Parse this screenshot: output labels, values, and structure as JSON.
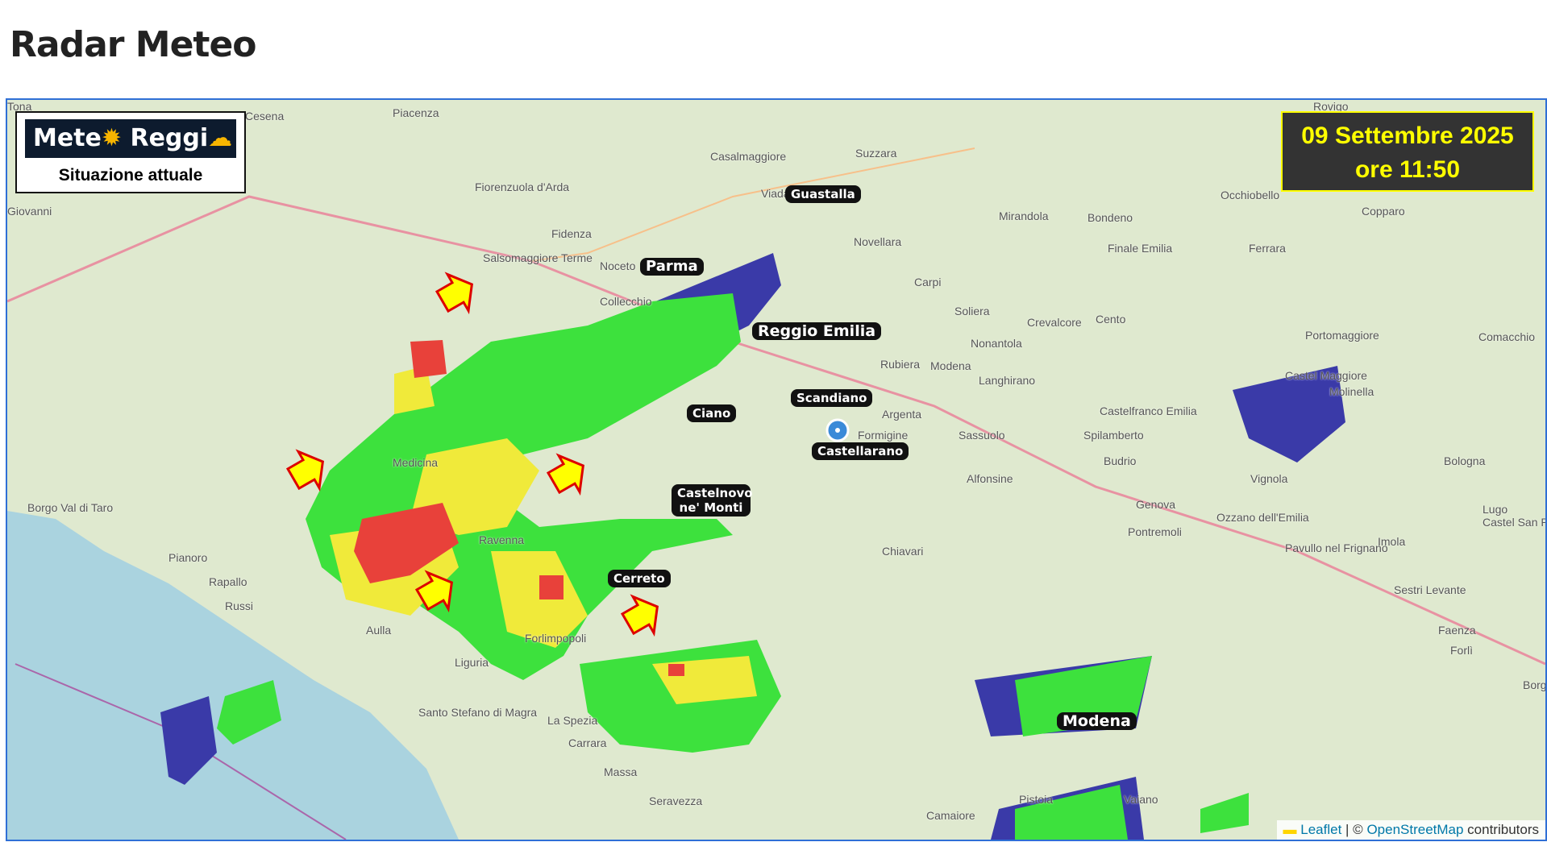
{
  "page": {
    "title": "Radar Meteo"
  },
  "logo": {
    "text1": "Mete",
    "text2": " Reggi",
    "subtitle": "Situazione attuale"
  },
  "timestamp": {
    "date": "09 Settembre 2025",
    "time": "ore 11:50"
  },
  "attribution": {
    "leaflet": "Leaflet",
    "sep": " | © ",
    "osm": "OpenStreetMap",
    "contributors": " contributors"
  },
  "colors": {
    "light": "#3de13d",
    "moderate": "#f0ea3a",
    "heavy": "#e8413a",
    "weak": "#3a3aa8",
    "arrow": "#ffff00"
  },
  "tags": [
    {
      "label": "Parma"
    },
    {
      "label": "Reggio Emilia"
    },
    {
      "label": "Guastalla"
    },
    {
      "label": "Scandiano"
    },
    {
      "label": "Ciano"
    },
    {
      "label": "Castellarano"
    },
    {
      "label": "Castelnovo ne' Monti"
    },
    {
      "label": "Cerreto"
    },
    {
      "label": "Modena"
    }
  ],
  "towns": [
    "Piacenza",
    "Casalmaggiore",
    "Suzzara",
    "Rovigo",
    "Fiorenzuola d'Arda",
    "Viadana",
    "Fidenza",
    "Salsomaggiore Terme",
    "Noceto",
    "Collecchio",
    "Mirandola",
    "Bondeno",
    "Occhiobello",
    "Copparo",
    "Novellara",
    "Finale Emilia",
    "Ferrara",
    "Carpi",
    "Soliera",
    "Crevalcore",
    "Cento",
    "Portomaggiore",
    "Comacchio",
    "Rubiera",
    "Modena",
    "Nonantola",
    "Langhirano",
    "Castelfranco Emilia",
    "Castel Maggiore",
    "Molinella",
    "Argenta",
    "Formigine",
    "Sassuolo",
    "Spilamberto",
    "Budrio",
    "Bologna",
    "Alfonsine",
    "Vignola",
    "Medicina",
    "Borgo Val di Taro",
    "Genova",
    "Ozzano dell'Emilia",
    "Castel San Pietro Terme",
    "Lugo",
    "Ravenna",
    "Pontremoli",
    "Pianoro",
    "Rapallo",
    "Chiavari",
    "Pavullo nel Frignano",
    "Imola",
    "Russi",
    "Sestri Levante",
    "Faenza",
    "Forlì",
    "Forlimpopoli",
    "Aulla",
    "Liguria",
    "Santo Stefano di Magra",
    "La Spezia",
    "Carrara",
    "Massa",
    "Seravezza",
    "Camaiore",
    "Pistoia",
    "Vaiano",
    "Borgo San Lorenzo",
    "Cesena",
    "Giovanni",
    "Tona"
  ]
}
